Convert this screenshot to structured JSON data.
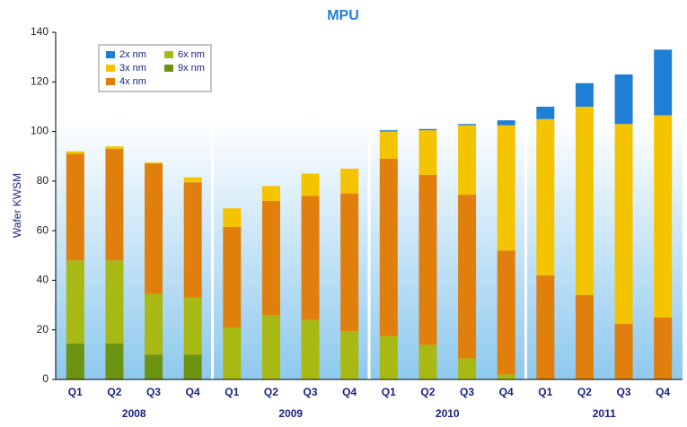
{
  "chart_data": {
    "type": "stacked_bar",
    "title": "MPU",
    "y_label": "Wafer KWSM",
    "categories": [
      "Q1",
      "Q2",
      "Q3",
      "Q4",
      "Q1",
      "Q2",
      "Q3",
      "Q4",
      "Q1",
      "Q2",
      "Q3",
      "Q4",
      "Q1",
      "Q2",
      "Q3",
      "Q4"
    ],
    "groups": [
      "2008",
      "2009",
      "2010",
      "2011"
    ],
    "series": [
      {
        "name": "2x nm",
        "color": "#1f7fd6",
        "values": [
          0,
          0,
          0,
          0,
          0,
          0,
          0,
          0,
          0.5,
          0.5,
          0.5,
          2,
          5,
          9.5,
          20,
          26.5
        ]
      },
      {
        "name": "3x nm",
        "color": "#f5c400",
        "values": [
          1,
          1,
          0.5,
          2,
          7.5,
          6,
          9,
          10,
          11,
          18,
          28,
          50.5,
          63,
          76,
          80.5,
          81.5
        ]
      },
      {
        "name": "4x nm",
        "color": "#e07f0c",
        "values": [
          43,
          45,
          52.5,
          46.5,
          40.5,
          46,
          50,
          55.5,
          71.5,
          68.5,
          66,
          50,
          42,
          34,
          22.5,
          25
        ]
      },
      {
        "name": "6x nm",
        "color": "#a8b913",
        "values": [
          33.5,
          33.5,
          24.5,
          23,
          21,
          26,
          24,
          19.5,
          17.5,
          14,
          8.5,
          2,
          0,
          0,
          0,
          0
        ]
      },
      {
        "name": "9x nm",
        "color": "#6c9410",
        "values": [
          14.5,
          14.5,
          10,
          10,
          0,
          0,
          0,
          0,
          0,
          0,
          0,
          0,
          0,
          0,
          0,
          0
        ]
      }
    ],
    "ylim": [
      0,
      140
    ],
    "yticks": [
      0,
      20,
      40,
      60,
      80,
      100,
      120,
      140
    ]
  }
}
